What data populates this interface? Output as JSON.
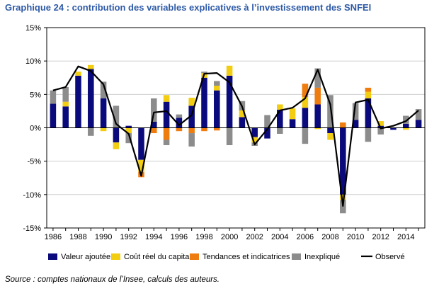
{
  "title": "Graphique 24 : contribution des variables explicatives à l’investissement des SNFEI",
  "source": "Source : comptes nationaux de l’Insee, calculs des auteurs.",
  "colors": {
    "va": "#0a0a7c",
    "cout": "#f2cd12",
    "tend": "#ee7c0f",
    "inex": "#8c8c8c",
    "obs": "#000000",
    "title": "#2e5aa6"
  },
  "chart_data": {
    "type": "bar",
    "stacked": true,
    "title": "Graphique 24 : contribution des variables explicatives à l’investissement des SNFEI",
    "xlabel": "",
    "ylabel": "",
    "ylim": [
      -15,
      15
    ],
    "yticks": [
      15,
      10,
      5,
      0,
      -5,
      -10,
      -15
    ],
    "ytick_labels": [
      "15%",
      "10%",
      "5%",
      "0%",
      "-5%",
      "-10%",
      "-15%"
    ],
    "xlim": [
      1985.5,
      2015.5
    ],
    "xticks": [
      1986,
      1988,
      1990,
      1992,
      1994,
      1996,
      1998,
      2000,
      2002,
      2004,
      2006,
      2008,
      2010,
      2012,
      2014
    ],
    "legend_position": "bottom",
    "grid": true,
    "categories": [
      1986,
      1987,
      1988,
      1989,
      1990,
      1991,
      1992,
      1993,
      1994,
      1995,
      1996,
      1997,
      1998,
      1999,
      2000,
      2001,
      2002,
      2003,
      2004,
      2005,
      2006,
      2007,
      2008,
      2009,
      2010,
      2011,
      2012,
      2013,
      2014,
      2015
    ],
    "series": [
      {
        "key": "va",
        "name": "Valeur ajoutée",
        "kind": "bar",
        "values": [
          3.6,
          3.2,
          7.8,
          8.8,
          4.4,
          -2.2,
          0.3,
          -4.8,
          0.9,
          3.9,
          1.5,
          3.3,
          7.5,
          5.6,
          7.8,
          1.6,
          -1.4,
          -1.6,
          2.7,
          1.3,
          3.0,
          3.5,
          -0.8,
          -10.0,
          1.2,
          4.4,
          0.3,
          -0.3,
          0.6,
          1.2
        ]
      },
      {
        "key": "cout",
        "name": "Coût réel du capital",
        "kind": "bar",
        "values": [
          0.0,
          0.7,
          0.6,
          0.6,
          -0.5,
          -1.0,
          -0.8,
          -1.8,
          0.0,
          1.0,
          0.0,
          1.2,
          0.7,
          0.7,
          1.5,
          1.0,
          -0.8,
          0.0,
          0.8,
          1.6,
          1.6,
          -0.2,
          -1.0,
          -0.8,
          0.0,
          1.0,
          0.7,
          0.0,
          -0.3,
          0.0
        ]
      },
      {
        "key": "tend",
        "name": "Tendances et indicatrices",
        "kind": "bar",
        "values": [
          0.0,
          0.0,
          0.0,
          0.0,
          0.0,
          0.0,
          0.0,
          -0.8,
          -0.8,
          -1.8,
          -0.5,
          -0.8,
          -0.5,
          -0.4,
          0.0,
          0.0,
          0.0,
          0.0,
          0.0,
          0.0,
          2.0,
          2.5,
          0.0,
          0.8,
          0.0,
          0.6,
          0.0,
          0.0,
          0.0,
          0.0
        ]
      },
      {
        "key": "inex",
        "name": "Inexpliqué",
        "kind": "bar",
        "values": [
          2.0,
          2.2,
          0.0,
          -1.2,
          2.5,
          3.3,
          -1.5,
          0.0,
          3.5,
          -0.8,
          0.5,
          -2.0,
          0.2,
          0.7,
          -2.6,
          1.4,
          -0.5,
          1.9,
          -0.9,
          0.0,
          -2.4,
          2.9,
          4.9,
          -2.0,
          2.5,
          -2.1,
          -1.0,
          0.0,
          1.2,
          1.6
        ]
      },
      {
        "key": "obs",
        "name": "Observé",
        "kind": "line",
        "values": [
          5.6,
          6.1,
          9.2,
          8.5,
          6.5,
          0.6,
          -0.9,
          -7.2,
          2.3,
          2.5,
          0.4,
          1.9,
          8.1,
          8.2,
          6.8,
          3.2,
          -2.5,
          -0.2,
          2.6,
          3.0,
          4.4,
          8.7,
          3.5,
          -11.7,
          3.8,
          4.2,
          -0.1,
          0.3,
          1.0,
          2.6
        ]
      }
    ],
    "legend_order": [
      "va",
      "cout",
      "tend",
      "inex",
      "obs"
    ]
  }
}
